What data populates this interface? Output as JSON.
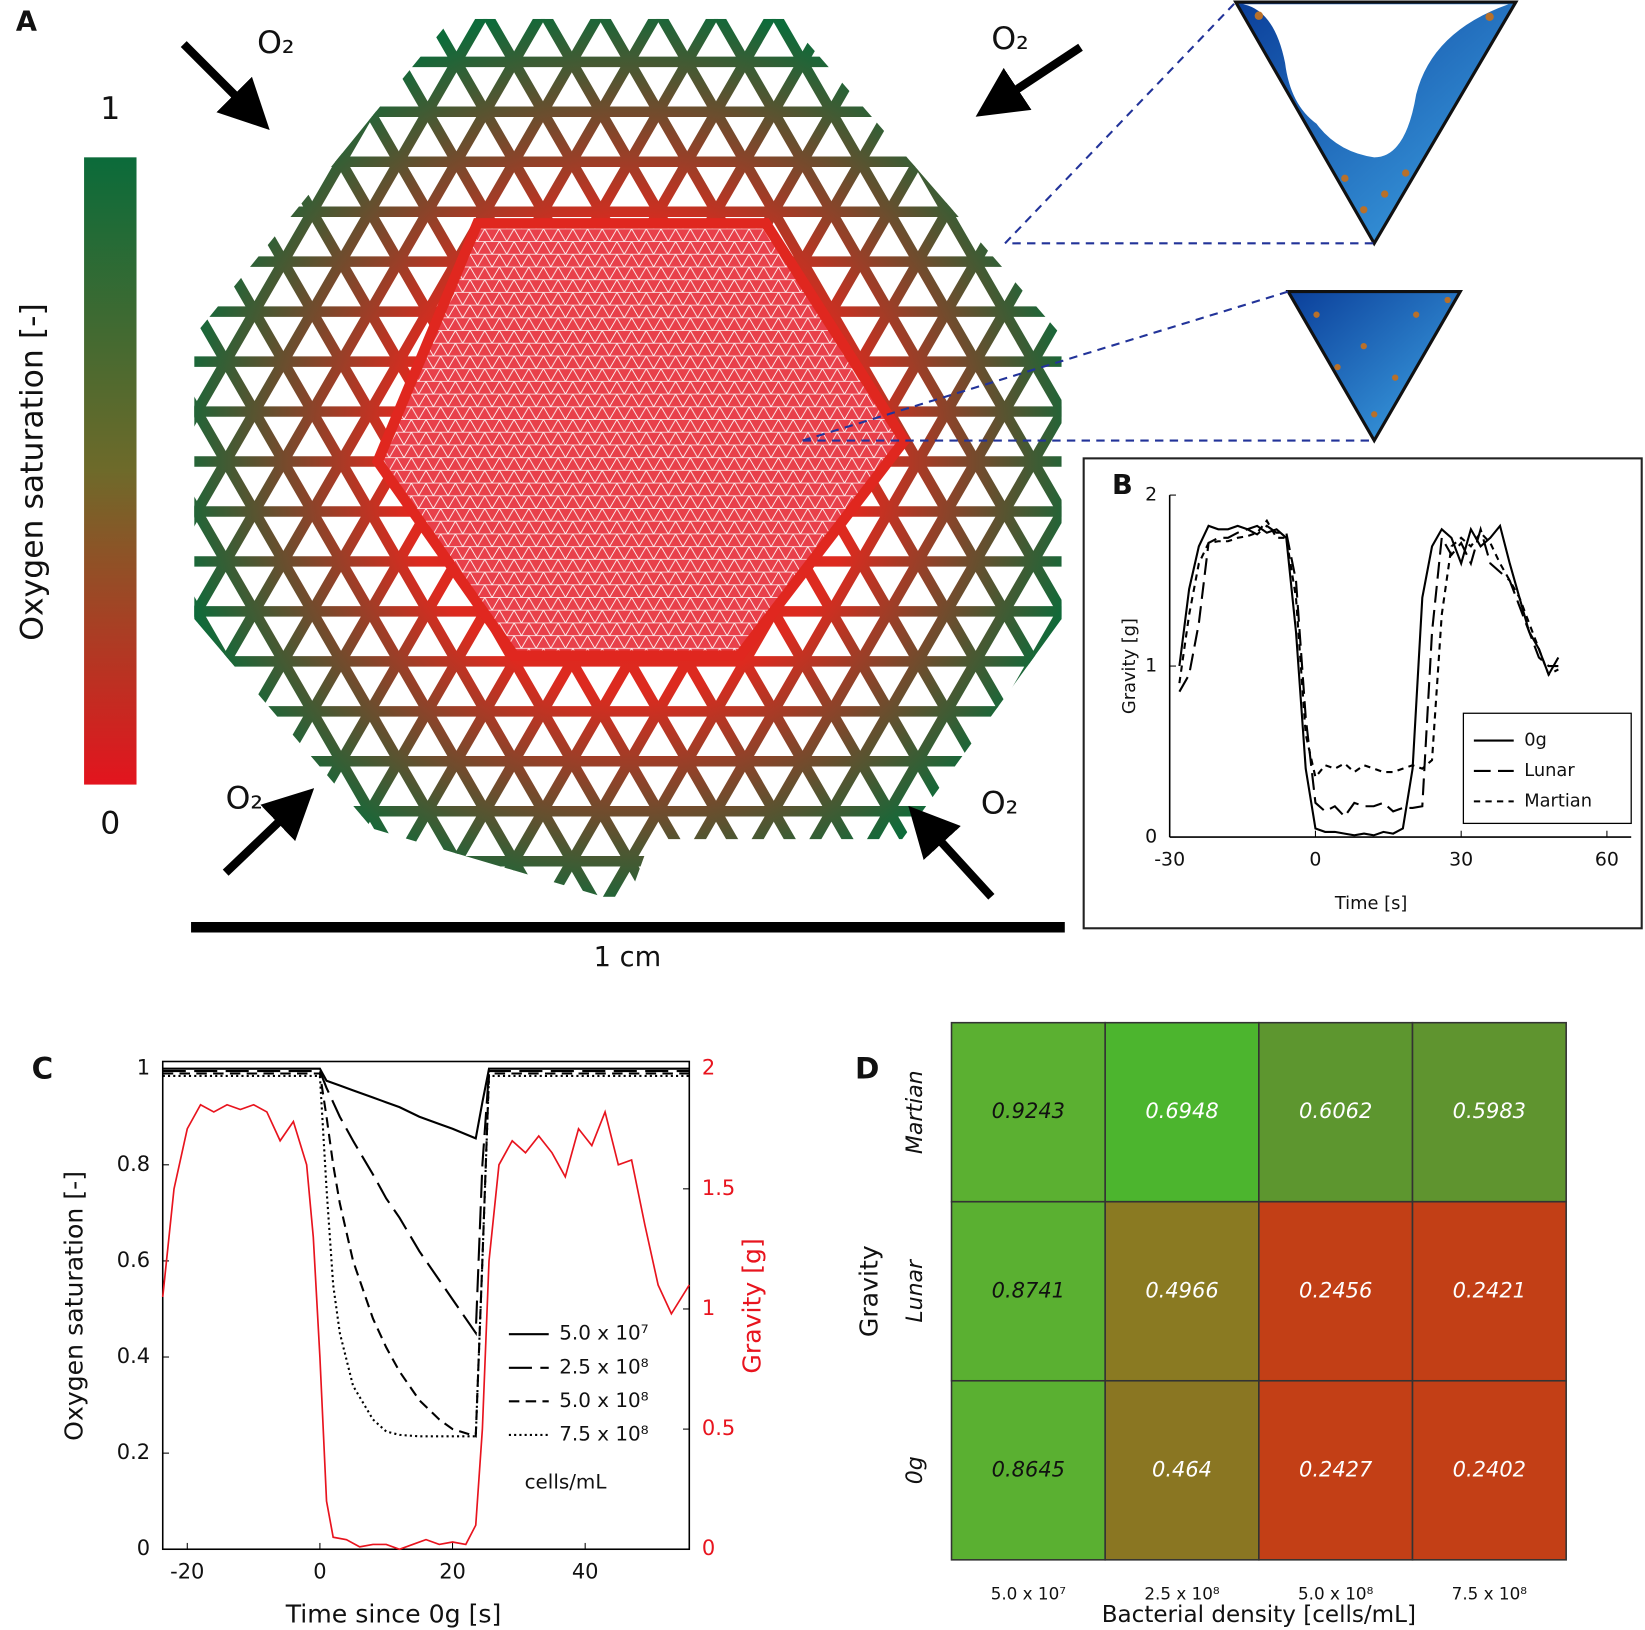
{
  "diagram": {
    "panel": "A",
    "oxygen_labels": [
      "O₂",
      "O₂",
      "O₂",
      "O₂"
    ],
    "colorbar": {
      "label": "Oxygen saturation [-]",
      "ticks": [
        0,
        1
      ]
    },
    "scale_bar": "1 cm"
  },
  "chart_data": [
    {
      "type": "line",
      "panel": "B",
      "xlabel": "Time [s]",
      "ylabel": "Gravity [g]",
      "xlim": [
        -30,
        65
      ],
      "xticks": [
        -30,
        0,
        30,
        60
      ],
      "ylim": [
        0,
        2
      ],
      "yticks": [
        0,
        1,
        2
      ],
      "legend": "lower right",
      "x": [
        -28,
        -26,
        -24,
        -22,
        -20,
        -18,
        -16,
        -14,
        -12,
        -10,
        -8,
        -6,
        -4,
        -2,
        0,
        2,
        4,
        6,
        8,
        10,
        12,
        14,
        16,
        18,
        20,
        22,
        24,
        26,
        28,
        30,
        32,
        34,
        36,
        38,
        40,
        42,
        44,
        46,
        48,
        50
      ],
      "series": [
        {
          "name": "0g",
          "color": "#000000",
          "linestyle": "solid",
          "values": [
            1.0,
            1.45,
            1.7,
            1.82,
            1.8,
            1.8,
            1.82,
            1.8,
            1.82,
            1.78,
            1.8,
            1.75,
            1.2,
            0.4,
            0.05,
            0.03,
            0.03,
            0.02,
            0.01,
            0.02,
            0.01,
            0.03,
            0.02,
            0.05,
            0.4,
            1.4,
            1.7,
            1.8,
            1.75,
            1.6,
            1.8,
            1.7,
            1.75,
            1.82,
            1.6,
            1.4,
            1.2,
            1.1,
            0.95,
            1.05
          ]
        },
        {
          "name": "Lunar",
          "color": "#000000",
          "linestyle": "dashed",
          "values": [
            0.85,
            0.95,
            1.25,
            1.72,
            1.75,
            1.75,
            1.78,
            1.8,
            1.77,
            1.82,
            1.78,
            1.78,
            1.5,
            0.7,
            0.2,
            0.15,
            0.18,
            0.12,
            0.2,
            0.18,
            0.18,
            0.2,
            0.15,
            0.17,
            0.17,
            0.18,
            1.2,
            1.75,
            1.65,
            1.72,
            1.6,
            1.8,
            1.6,
            1.55,
            1.5,
            1.35,
            1.2,
            1.05,
            1.0,
            1.0
          ]
        },
        {
          "name": "Martian",
          "color": "#000000",
          "linestyle": "dotted",
          "values": [
            0.9,
            1.3,
            1.6,
            1.72,
            1.73,
            1.73,
            1.75,
            1.76,
            1.78,
            1.85,
            1.75,
            1.75,
            1.4,
            0.6,
            0.35,
            0.42,
            0.4,
            0.43,
            0.38,
            0.42,
            0.4,
            0.38,
            0.38,
            0.4,
            0.42,
            0.4,
            0.45,
            1.3,
            1.7,
            1.75,
            1.7,
            1.78,
            1.72,
            1.6,
            1.5,
            1.4,
            1.25,
            1.1,
            0.95,
            0.98
          ]
        }
      ]
    },
    {
      "type": "line",
      "panel": "C",
      "xlabel": "Time since 0g [s]",
      "ylabel": "Oxygen saturation [-]",
      "y2label": "Gravity [g]",
      "y2color": "#e8141e",
      "xlim": [
        -23.7,
        55.7
      ],
      "xticks": [
        -20,
        0,
        20,
        40
      ],
      "ylim": [
        0,
        1.015
      ],
      "yticks": [
        0,
        0.2,
        0.4,
        0.6,
        0.8,
        1
      ],
      "y2lim": [
        0,
        2.03
      ],
      "y2ticks": [
        0,
        0.5,
        1,
        1.5,
        2
      ],
      "legend_title": "cells/mL",
      "x": [
        -23.7,
        0,
        1,
        2,
        3,
        5,
        8,
        10,
        12,
        15,
        18,
        20,
        23.5,
        24.5,
        25.5,
        55.7
      ],
      "series": [
        {
          "name": "5.0 x 10⁷",
          "color": "#000000",
          "linestyle": "solid",
          "values": [
            1,
            1,
            0.975,
            0.97,
            0.965,
            0.955,
            0.94,
            0.93,
            0.92,
            0.9,
            0.885,
            0.875,
            0.855,
            0.93,
            1,
            1
          ]
        },
        {
          "name": "2.5 x 10⁸",
          "color": "#000000",
          "linestyle": "longdash",
          "values": [
            0.995,
            0.995,
            0.96,
            0.93,
            0.9,
            0.85,
            0.78,
            0.73,
            0.69,
            0.62,
            0.56,
            0.52,
            0.45,
            0.8,
            0.995,
            0.995
          ]
        },
        {
          "name": "5.0 x 10⁸",
          "color": "#000000",
          "linestyle": "dash",
          "values": [
            0.99,
            0.99,
            0.9,
            0.8,
            0.72,
            0.6,
            0.48,
            0.42,
            0.37,
            0.31,
            0.27,
            0.25,
            0.235,
            0.6,
            0.99,
            0.99
          ]
        },
        {
          "name": "7.5 x 10⁸",
          "color": "#000000",
          "linestyle": "dot",
          "values": [
            0.985,
            0.985,
            0.75,
            0.55,
            0.45,
            0.34,
            0.27,
            0.245,
            0.238,
            0.235,
            0.235,
            0.235,
            0.235,
            0.6,
            0.985,
            0.985
          ]
        },
        {
          "color": "#e8141e",
          "linestyle": "solid",
          "axis": "y2",
          "x": [
            -23.7,
            -22,
            -20,
            -18,
            -16,
            -14,
            -12,
            -10,
            -8,
            -6,
            -4,
            -2,
            -1,
            0,
            1,
            2,
            4,
            6,
            8,
            10,
            12,
            14,
            16,
            18,
            20,
            22,
            23.5,
            24.5,
            25.5,
            27,
            29,
            31,
            33,
            35,
            37,
            39,
            41,
            43,
            45,
            47,
            49,
            51,
            53,
            55.7
          ],
          "values": [
            1.05,
            1.5,
            1.75,
            1.85,
            1.82,
            1.85,
            1.83,
            1.85,
            1.82,
            1.7,
            1.78,
            1.6,
            1.3,
            0.8,
            0.2,
            0.05,
            0.04,
            0.01,
            0.02,
            0.02,
            0.0,
            0.02,
            0.04,
            0.02,
            0.03,
            0.02,
            0.1,
            0.5,
            1.2,
            1.6,
            1.7,
            1.65,
            1.72,
            1.65,
            1.55,
            1.75,
            1.68,
            1.82,
            1.6,
            1.62,
            1.35,
            1.1,
            0.98,
            1.1
          ]
        }
      ]
    },
    {
      "type": "heatmap",
      "panel": "D",
      "xlabel": "Bacterial density [cells/mL]",
      "ylabel": "Gravity",
      "categories": [
        "5.0 x 10⁷",
        "2.5 x 10⁸",
        "5.0 x 10⁸",
        "7.5 x 10⁸"
      ],
      "rows": [
        "Martian",
        "Lunar",
        "0g"
      ],
      "values": [
        [
          0.9243,
          0.6948,
          0.6062,
          0.5983
        ],
        [
          0.8741,
          0.4966,
          0.2456,
          0.2421
        ],
        [
          0.8645,
          0.464,
          0.2427,
          0.2402
        ]
      ],
      "colors": [
        [
          "#5bb031",
          "#4cb52e",
          "#5d962f",
          "#5f942f"
        ],
        [
          "#5ab031",
          "#8a7a22",
          "#c23f16",
          "#c23f16"
        ],
        [
          "#5ab031",
          "#8a7622",
          "#c33f16",
          "#c33f16"
        ]
      ],
      "text_colors": [
        "#111111",
        "#ffffff",
        "#ffffff",
        "#ffffff"
      ]
    }
  ]
}
